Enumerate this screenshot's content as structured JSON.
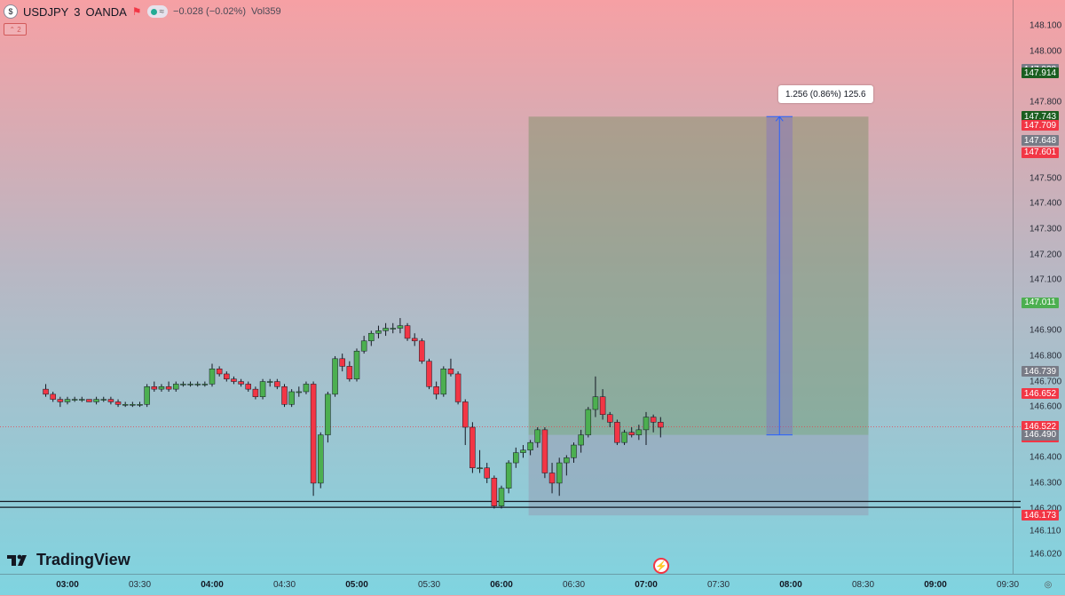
{
  "legend": {
    "symbol": "USDJPY",
    "interval": "3",
    "exchange": "OANDA",
    "change": "−0.028 (−0.02%)",
    "volume_label": "Vol",
    "volume": "359",
    "collapse_label": "⌃ 2",
    "pill_text": "≈"
  },
  "brand": {
    "name": "TradingView"
  },
  "measure": {
    "text": "1.256 (0.86%) 125.6"
  },
  "price_scale": {
    "ticks": [
      "148.100",
      "148.000",
      "147.800",
      "147.500",
      "147.400",
      "147.300",
      "147.200",
      "147.100",
      "146.900",
      "146.800",
      "146.700",
      "146.600",
      "146.400",
      "146.300",
      "146.200",
      "146.110",
      "146.020"
    ],
    "labels": [
      {
        "value": "147.928",
        "color": "#787b86"
      },
      {
        "value": "147.914",
        "color": "#1b5e20"
      },
      {
        "value": "147.743",
        "color": "#1b5e20"
      },
      {
        "value": "147.709",
        "color": "#f23645"
      },
      {
        "value": "147.648",
        "color": "#787b86"
      },
      {
        "value": "147.601",
        "color": "#f23645"
      },
      {
        "value": "147.011",
        "color": "#4caf50"
      },
      {
        "value": "146.739",
        "color": "#787b86"
      },
      {
        "value": "146.652",
        "color": "#f23645"
      },
      {
        "value": "146.522",
        "countdown": "01:36",
        "color": "#f23645"
      },
      {
        "value": "146.490",
        "color": "#787b86"
      },
      {
        "value": "146.173",
        "color": "#f23645"
      }
    ]
  },
  "time_axis": {
    "labels": [
      {
        "text": "03:00",
        "major": true
      },
      {
        "text": "03:30",
        "major": false
      },
      {
        "text": "04:00",
        "major": true
      },
      {
        "text": "04:30",
        "major": false
      },
      {
        "text": "05:00",
        "major": true
      },
      {
        "text": "05:30",
        "major": false
      },
      {
        "text": "06:00",
        "major": true
      },
      {
        "text": "06:30",
        "major": false
      },
      {
        "text": "07:00",
        "major": true
      },
      {
        "text": "07:30",
        "major": false
      },
      {
        "text": "08:00",
        "major": true
      },
      {
        "text": "08:30",
        "major": false
      },
      {
        "text": "09:00",
        "major": true
      },
      {
        "text": "09:30",
        "major": false
      }
    ]
  },
  "colors": {
    "up": "#4caf50",
    "down": "#f23645",
    "wick": "#131722",
    "accent": "#2962ff"
  },
  "chart_data": {
    "type": "candlestick",
    "symbol": "USDJPY",
    "interval_minutes": 3,
    "ylim": [
      146.02,
      148.12
    ],
    "x_time_range": [
      "02:45",
      "09:35"
    ],
    "candles": [
      [
        "02:51",
        146.67,
        146.69,
        146.64,
        146.65
      ],
      [
        "02:54",
        146.65,
        146.66,
        146.62,
        146.63
      ],
      [
        "02:57",
        146.63,
        146.64,
        146.6,
        146.62
      ],
      [
        "03:00",
        146.62,
        146.64,
        146.61,
        146.63
      ],
      [
        "03:03",
        146.63,
        146.64,
        146.62,
        146.63
      ],
      [
        "03:06",
        146.63,
        146.64,
        146.62,
        146.63
      ],
      [
        "03:09",
        146.63,
        146.63,
        146.62,
        146.62
      ],
      [
        "03:12",
        146.62,
        146.64,
        146.61,
        146.63
      ],
      [
        "03:15",
        146.63,
        146.64,
        146.62,
        146.63
      ],
      [
        "03:18",
        146.63,
        146.64,
        146.61,
        146.62
      ],
      [
        "03:21",
        146.62,
        146.63,
        146.6,
        146.61
      ],
      [
        "03:24",
        146.61,
        146.62,
        146.6,
        146.61
      ],
      [
        "03:27",
        146.61,
        146.62,
        146.6,
        146.61
      ],
      [
        "03:30",
        146.61,
        146.62,
        146.6,
        146.61
      ],
      [
        "03:33",
        146.61,
        146.69,
        146.6,
        146.68
      ],
      [
        "03:36",
        146.68,
        146.7,
        146.66,
        146.67
      ],
      [
        "03:39",
        146.67,
        146.69,
        146.66,
        146.68
      ],
      [
        "03:42",
        146.68,
        146.7,
        146.66,
        146.67
      ],
      [
        "03:45",
        146.67,
        146.7,
        146.66,
        146.69
      ],
      [
        "03:48",
        146.69,
        146.7,
        146.68,
        146.69
      ],
      [
        "03:51",
        146.69,
        146.7,
        146.68,
        146.69
      ],
      [
        "03:54",
        146.69,
        146.7,
        146.68,
        146.69
      ],
      [
        "03:57",
        146.69,
        146.7,
        146.68,
        146.69
      ],
      [
        "04:00",
        146.69,
        146.77,
        146.68,
        146.75
      ],
      [
        "04:03",
        146.75,
        146.76,
        146.72,
        146.73
      ],
      [
        "04:06",
        146.73,
        146.74,
        146.7,
        146.71
      ],
      [
        "04:09",
        146.71,
        146.72,
        146.69,
        146.7
      ],
      [
        "04:12",
        146.7,
        146.71,
        146.68,
        146.69
      ],
      [
        "04:15",
        146.69,
        146.7,
        146.66,
        146.67
      ],
      [
        "04:18",
        146.67,
        146.68,
        146.63,
        146.64
      ],
      [
        "04:21",
        146.64,
        146.71,
        146.63,
        146.7
      ],
      [
        "04:24",
        146.7,
        146.71,
        146.68,
        146.7
      ],
      [
        "04:27",
        146.7,
        146.71,
        146.67,
        146.68
      ],
      [
        "04:30",
        146.68,
        146.69,
        146.6,
        146.61
      ],
      [
        "04:33",
        146.61,
        146.67,
        146.6,
        146.66
      ],
      [
        "04:36",
        146.66,
        146.68,
        146.64,
        146.66
      ],
      [
        "04:39",
        146.66,
        146.7,
        146.65,
        146.69
      ],
      [
        "04:42",
        146.69,
        146.7,
        146.25,
        146.3
      ],
      [
        "04:45",
        146.3,
        146.5,
        146.28,
        146.49
      ],
      [
        "04:48",
        146.49,
        146.66,
        146.46,
        146.65
      ],
      [
        "04:51",
        146.65,
        146.8,
        146.64,
        146.79
      ],
      [
        "04:54",
        146.79,
        146.81,
        146.74,
        146.76
      ],
      [
        "04:57",
        146.76,
        146.78,
        146.7,
        146.71
      ],
      [
        "05:00",
        146.71,
        146.83,
        146.7,
        146.82
      ],
      [
        "05:03",
        146.82,
        146.88,
        146.81,
        146.86
      ],
      [
        "05:06",
        146.86,
        146.9,
        146.84,
        146.89
      ],
      [
        "05:09",
        146.89,
        146.92,
        146.87,
        146.9
      ],
      [
        "05:12",
        146.9,
        146.93,
        146.88,
        146.91
      ],
      [
        "05:15",
        146.91,
        146.93,
        146.89,
        146.91
      ],
      [
        "05:18",
        146.91,
        146.95,
        146.89,
        146.92
      ],
      [
        "05:21",
        146.92,
        146.93,
        146.86,
        146.87
      ],
      [
        "05:24",
        146.87,
        146.89,
        146.84,
        146.86
      ],
      [
        "05:27",
        146.86,
        146.87,
        146.77,
        146.78
      ],
      [
        "05:30",
        146.78,
        146.79,
        146.67,
        146.68
      ],
      [
        "05:33",
        146.68,
        146.7,
        146.63,
        146.65
      ],
      [
        "05:36",
        146.65,
        146.76,
        146.64,
        146.75
      ],
      [
        "05:39",
        146.75,
        146.79,
        146.72,
        146.73
      ],
      [
        "05:42",
        146.73,
        146.74,
        146.61,
        146.62
      ],
      [
        "05:45",
        146.62,
        146.63,
        146.45,
        146.52
      ],
      [
        "05:48",
        146.52,
        146.54,
        146.34,
        146.36
      ],
      [
        "05:51",
        146.36,
        146.43,
        146.34,
        146.36
      ],
      [
        "05:54",
        146.36,
        146.38,
        146.3,
        146.32
      ],
      [
        "05:57",
        146.32,
        146.33,
        146.2,
        146.21
      ],
      [
        "06:00",
        146.21,
        146.29,
        146.2,
        146.28
      ],
      [
        "06:03",
        146.28,
        146.39,
        146.26,
        146.38
      ],
      [
        "06:06",
        146.38,
        146.44,
        146.36,
        146.42
      ],
      [
        "06:09",
        146.42,
        146.45,
        146.4,
        146.43
      ],
      [
        "06:12",
        146.43,
        146.47,
        146.41,
        146.46
      ],
      [
        "06:15",
        146.46,
        146.52,
        146.44,
        146.51
      ],
      [
        "06:18",
        146.51,
        146.52,
        146.32,
        146.34
      ],
      [
        "06:21",
        146.34,
        146.38,
        146.26,
        146.3
      ],
      [
        "06:24",
        146.3,
        146.4,
        146.25,
        146.38
      ],
      [
        "06:27",
        146.38,
        146.41,
        146.33,
        146.4
      ],
      [
        "06:30",
        146.4,
        146.46,
        146.38,
        146.45
      ],
      [
        "06:33",
        146.45,
        146.51,
        146.42,
        146.49
      ],
      [
        "06:36",
        146.49,
        146.6,
        146.48,
        146.59
      ],
      [
        "06:39",
        146.59,
        146.72,
        146.56,
        146.64
      ],
      [
        "06:42",
        146.64,
        146.67,
        146.55,
        146.57
      ],
      [
        "06:45",
        146.57,
        146.58,
        146.52,
        146.54
      ],
      [
        "06:48",
        146.54,
        146.55,
        146.45,
        146.46
      ],
      [
        "06:51",
        146.46,
        146.51,
        146.45,
        146.5
      ],
      [
        "06:54",
        146.5,
        146.52,
        146.48,
        146.49
      ],
      [
        "06:57",
        146.49,
        146.53,
        146.47,
        146.51
      ],
      [
        "07:00",
        146.51,
        146.58,
        146.45,
        146.56
      ],
      [
        "07:03",
        146.56,
        146.57,
        146.5,
        146.54
      ],
      [
        "07:06",
        146.54,
        146.56,
        146.48,
        146.52
      ]
    ],
    "long_position": {
      "entry": 146.49,
      "target": 147.743,
      "stop": 146.173,
      "start_time": "06:12",
      "end_time": "08:30"
    },
    "measure": {
      "text": "1.256 (0.86%) 125.6",
      "from_price": 146.49,
      "to_price": 147.743,
      "start_time": "07:51",
      "end_time": "08:00"
    },
    "horizontal_lines": [
      146.228,
      146.205
    ],
    "current_price_line": 146.522
  }
}
